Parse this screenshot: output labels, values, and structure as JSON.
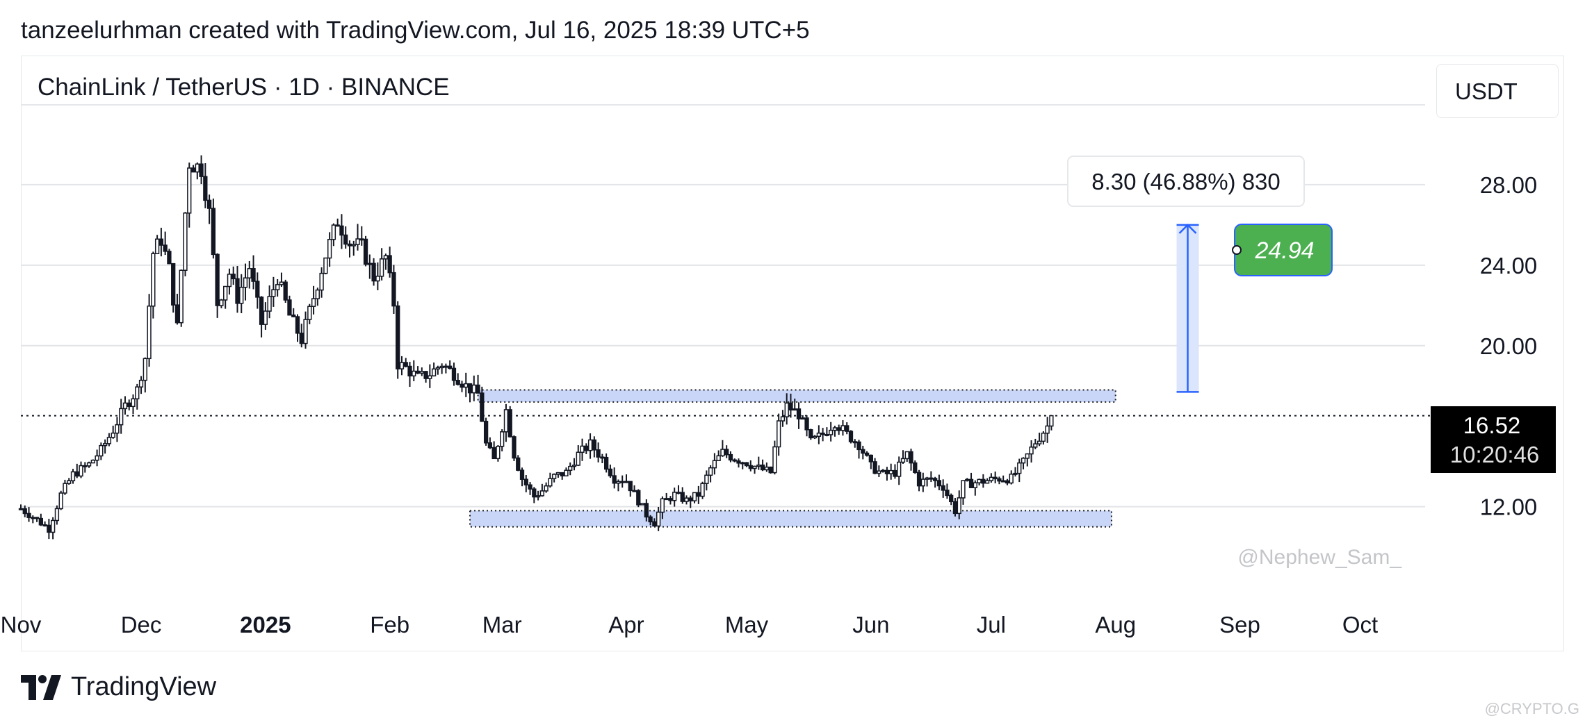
{
  "header": {
    "text": "tanzeelurhman created with TradingView.com, Jul 16, 2025 18:39 UTC+5"
  },
  "chart_header": {
    "symbol_title": "ChainLink / TetherUS · 1D · BINANCE",
    "currency": "USDT"
  },
  "footer": {
    "brand": "TradingView",
    "corner_watermark": "@CRYPTO.G"
  },
  "colors": {
    "range_fill": "#c9d6f7",
    "arrow": "#2962ff",
    "target_green": "#4caf50",
    "price_box": "#000000"
  },
  "chart_data": {
    "type": "candlestick",
    "ylim": [
      7.5,
      32
    ],
    "y_ticks": [
      {
        "value": 28,
        "label": "28.00"
      },
      {
        "value": 24,
        "label": "24.00"
      },
      {
        "value": 20,
        "label": "20.00"
      },
      {
        "value": 12,
        "label": "12.00"
      }
    ],
    "x_ticks": [
      {
        "date": "2024-11-01",
        "label": "Nov",
        "bold": false
      },
      {
        "date": "2024-12-01",
        "label": "Dec",
        "bold": false
      },
      {
        "date": "2025-01-01",
        "label": "2025",
        "bold": true
      },
      {
        "date": "2025-02-01",
        "label": "Feb",
        "bold": false
      },
      {
        "date": "2025-03-01",
        "label": "Mar",
        "bold": false
      },
      {
        "date": "2025-04-01",
        "label": "Apr",
        "bold": false
      },
      {
        "date": "2025-05-01",
        "label": "May",
        "bold": false
      },
      {
        "date": "2025-06-01",
        "label": "Jun",
        "bold": false
      },
      {
        "date": "2025-07-01",
        "label": "Jul",
        "bold": false
      },
      {
        "date": "2025-08-01",
        "label": "Aug",
        "bold": false
      },
      {
        "date": "2025-09-01",
        "label": "Sep",
        "bold": false
      },
      {
        "date": "2025-10-01",
        "label": "Oct",
        "bold": false
      }
    ],
    "x_range": [
      "2024-11-01",
      "2025-10-12"
    ],
    "price_path": [
      [
        "2024-11-01",
        11.9
      ],
      [
        "2024-11-04",
        11.5
      ],
      [
        "2024-11-08",
        10.9
      ],
      [
        "2024-11-11",
        12.6
      ],
      [
        "2024-11-14",
        13.6
      ],
      [
        "2024-11-18",
        14.1
      ],
      [
        "2024-11-21",
        14.8
      ],
      [
        "2024-11-24",
        15.8
      ],
      [
        "2024-11-27",
        17.0
      ],
      [
        "2024-11-30",
        17.8
      ],
      [
        "2024-12-02",
        19.4
      ],
      [
        "2024-12-04",
        24.6
      ],
      [
        "2024-12-06",
        25.3
      ],
      [
        "2024-12-08",
        23.8
      ],
      [
        "2024-12-10",
        20.9
      ],
      [
        "2024-12-12",
        26.6
      ],
      [
        "2024-12-13",
        29.1
      ],
      [
        "2024-12-16",
        28.8
      ],
      [
        "2024-12-18",
        26.6
      ],
      [
        "2024-12-20",
        22.1
      ],
      [
        "2024-12-23",
        23.6
      ],
      [
        "2024-12-25",
        22.4
      ],
      [
        "2024-12-28",
        23.9
      ],
      [
        "2024-12-31",
        21.1
      ],
      [
        "2025-01-04",
        23.4
      ],
      [
        "2025-01-07",
        21.5
      ],
      [
        "2025-01-10",
        20.3
      ],
      [
        "2025-01-13",
        22.4
      ],
      [
        "2025-01-16",
        24.5
      ],
      [
        "2025-01-19",
        26.2
      ],
      [
        "2025-01-22",
        25.1
      ],
      [
        "2025-01-25",
        24.9
      ],
      [
        "2025-01-28",
        23.4
      ],
      [
        "2025-01-31",
        24.4
      ],
      [
        "2025-02-02",
        22.1
      ],
      [
        "2025-02-03",
        19.1
      ],
      [
        "2025-02-05",
        18.9
      ],
      [
        "2025-02-08",
        18.4
      ],
      [
        "2025-02-11",
        18.6
      ],
      [
        "2025-02-14",
        19.1
      ],
      [
        "2025-02-17",
        18.6
      ],
      [
        "2025-02-20",
        18.0
      ],
      [
        "2025-02-23",
        17.6
      ],
      [
        "2025-02-25",
        15.1
      ],
      [
        "2025-02-27",
        14.3
      ],
      [
        "2025-03-02",
        16.8
      ],
      [
        "2025-03-04",
        14.6
      ],
      [
        "2025-03-06",
        13.4
      ],
      [
        "2025-03-09",
        12.5
      ],
      [
        "2025-03-11",
        12.8
      ],
      [
        "2025-03-14",
        13.5
      ],
      [
        "2025-03-17",
        13.7
      ],
      [
        "2025-03-20",
        14.6
      ],
      [
        "2025-03-23",
        15.1
      ],
      [
        "2025-03-26",
        14.4
      ],
      [
        "2025-03-29",
        13.4
      ],
      [
        "2025-04-01",
        13.3
      ],
      [
        "2025-04-04",
        12.3
      ],
      [
        "2025-04-06",
        11.6
      ],
      [
        "2025-04-08",
        11.2
      ],
      [
        "2025-04-10",
        12.2
      ],
      [
        "2025-04-13",
        12.6
      ],
      [
        "2025-04-16",
        12.3
      ],
      [
        "2025-04-19",
        12.6
      ],
      [
        "2025-04-22",
        13.9
      ],
      [
        "2025-04-25",
        14.7
      ],
      [
        "2025-04-28",
        14.4
      ],
      [
        "2025-05-01",
        14.2
      ],
      [
        "2025-05-04",
        13.9
      ],
      [
        "2025-05-07",
        13.7
      ],
      [
        "2025-05-09",
        16.1
      ],
      [
        "2025-05-11",
        17.0
      ],
      [
        "2025-05-14",
        16.6
      ],
      [
        "2025-05-17",
        15.2
      ],
      [
        "2025-05-20",
        15.6
      ],
      [
        "2025-05-23",
        16.2
      ],
      [
        "2025-05-26",
        15.6
      ],
      [
        "2025-05-29",
        15.1
      ],
      [
        "2025-06-01",
        14.0
      ],
      [
        "2025-06-04",
        13.6
      ],
      [
        "2025-06-07",
        13.7
      ],
      [
        "2025-06-10",
        14.6
      ],
      [
        "2025-06-13",
        13.2
      ],
      [
        "2025-06-16",
        13.4
      ],
      [
        "2025-06-19",
        13.0
      ],
      [
        "2025-06-22",
        11.8
      ],
      [
        "2025-06-24",
        13.1
      ],
      [
        "2025-06-27",
        13.2
      ],
      [
        "2025-06-30",
        13.3
      ],
      [
        "2025-07-03",
        13.4
      ],
      [
        "2025-07-06",
        13.4
      ],
      [
        "2025-07-09",
        14.2
      ],
      [
        "2025-07-12",
        15.2
      ],
      [
        "2025-07-15",
        16.0
      ],
      [
        "2025-07-16",
        16.52
      ]
    ],
    "overlays": {
      "resistance_zone": {
        "from": "2025-02-23",
        "to": "2025-08-01",
        "low": 17.2,
        "high": 17.8
      },
      "support_zone": {
        "from": "2025-02-21",
        "to": "2025-07-31",
        "low": 11.0,
        "high": 11.8
      },
      "current_price_line": 16.52,
      "target_arrow": {
        "date": "2025-08-19",
        "from": 17.7,
        "to": 26.0
      },
      "measure_label": "8.30 (46.88%) 830",
      "target_label": "24.94",
      "current_price_label": "16.52",
      "countdown_label": "10:20:46",
      "watermark": "@Nephew_Sam_"
    }
  }
}
